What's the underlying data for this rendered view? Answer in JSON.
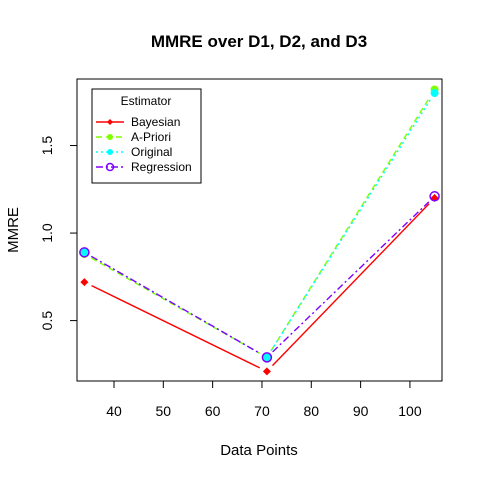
{
  "chart_data": {
    "type": "line",
    "title": "MMRE over D1, D2, and D3",
    "xlabel": "Data Points",
    "ylabel": "MMRE",
    "xlim": [
      32.5,
      106.5
    ],
    "ylim": [
      0.155,
      1.88
    ],
    "xticks": [
      40,
      50,
      60,
      70,
      80,
      90,
      100
    ],
    "yticks": [
      0.5,
      1.0,
      1.5
    ],
    "ytick_labels": [
      "0.5",
      "1.0",
      "1.5"
    ],
    "grid": false,
    "legend": {
      "title": "Estimator",
      "placement": "top-left"
    },
    "x": [
      34,
      71,
      105
    ],
    "series": [
      {
        "name": "Bayesian",
        "values": [
          0.72,
          0.21,
          1.2
        ],
        "color": "#ff0000",
        "dash": "solid",
        "marker": "diamond"
      },
      {
        "name": "A-Priori",
        "values": [
          0.88,
          0.29,
          1.82
        ],
        "color": "#80ff00",
        "dash": "dashed",
        "marker": "dot"
      },
      {
        "name": "Original",
        "values": [
          0.89,
          0.29,
          1.8
        ],
        "color": "#00ffff",
        "dash": "dotted",
        "marker": "dot"
      },
      {
        "name": "Regression",
        "values": [
          0.89,
          0.29,
          1.21
        ],
        "color": "#8000ff",
        "dash": "dashdot",
        "marker": "circle"
      }
    ]
  }
}
